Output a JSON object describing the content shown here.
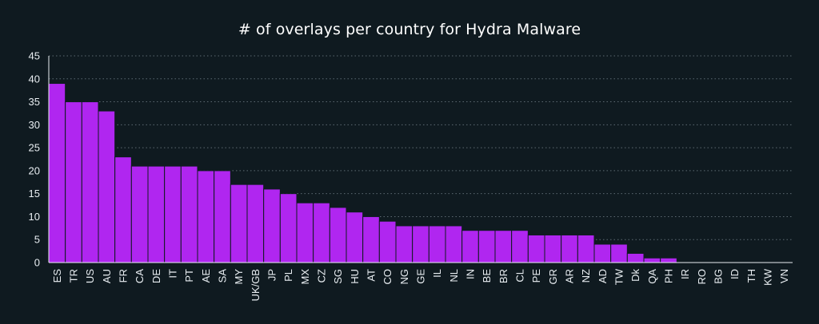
{
  "chart_data": {
    "type": "bar",
    "title": "# of overlays per country for Hydra Malware",
    "xlabel": "",
    "ylabel": "",
    "ylim": [
      0,
      45
    ],
    "yticks": [
      0,
      5,
      10,
      15,
      20,
      25,
      30,
      35,
      40,
      45
    ],
    "grid": true,
    "categories": [
      "ES",
      "TR",
      "US",
      "AU",
      "FR",
      "CA",
      "DE",
      "IT",
      "PT",
      "AE",
      "SA",
      "MY",
      "UK/GB",
      "JP",
      "PL",
      "MX",
      "CZ",
      "SG",
      "HU",
      "AT",
      "CO",
      "NG",
      "GE",
      "IL",
      "NL",
      "IN",
      "BE",
      "BR",
      "CL",
      "PE",
      "GR",
      "AR",
      "NZ",
      "AD",
      "TW",
      "Dk",
      "QA",
      "PH",
      "IR",
      "RO",
      "BG",
      "ID",
      "TH",
      "KW",
      "VN"
    ],
    "values": [
      39,
      35,
      35,
      33,
      23,
      21,
      21,
      21,
      21,
      20,
      20,
      17,
      17,
      16,
      15,
      13,
      13,
      12,
      11,
      10,
      9,
      8,
      8,
      8,
      8,
      7,
      7,
      7,
      7,
      6,
      6,
      6,
      6,
      4,
      4,
      2,
      1,
      1,
      0,
      0,
      0,
      0,
      0,
      0,
      0
    ],
    "colors": {
      "bar": "#b026f0",
      "bar_edge": "#0f1a20",
      "background": "#0f1a20",
      "grid": "#5d6a72",
      "axis": "#e9eef2",
      "text": "#e9eef2"
    }
  }
}
